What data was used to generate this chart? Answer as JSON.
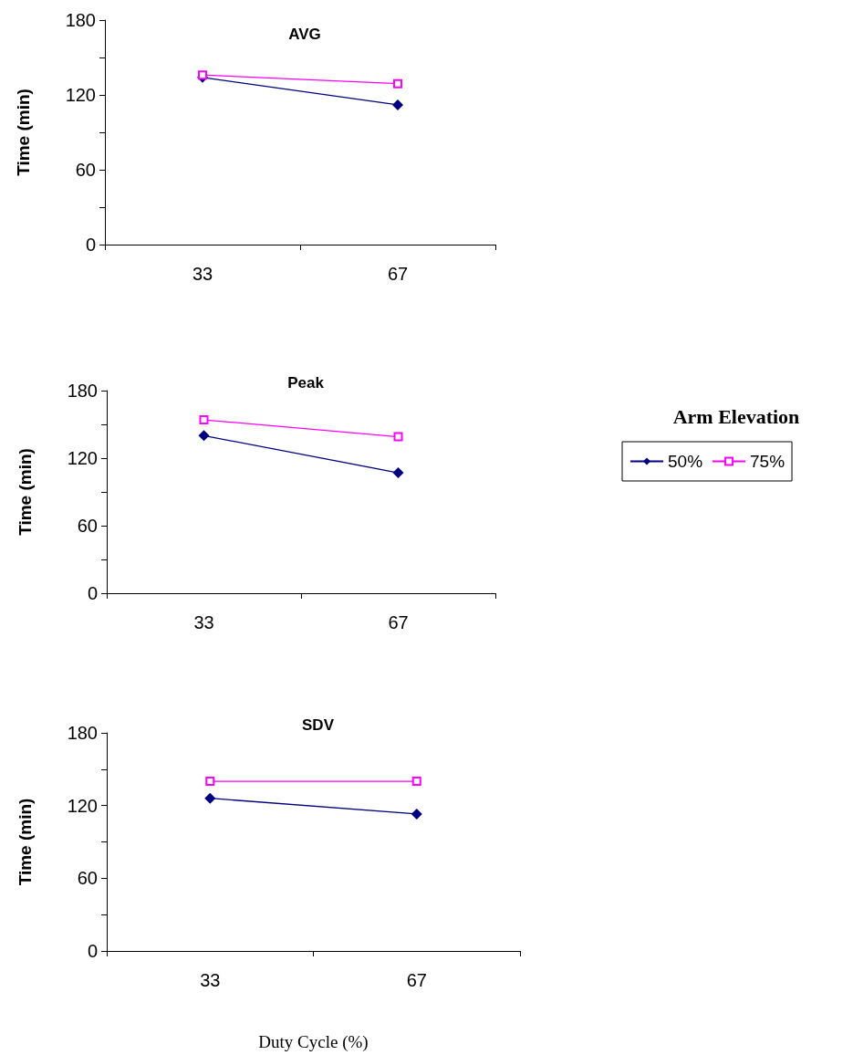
{
  "chart_data": [
    {
      "type": "line",
      "title": "AVG",
      "ylabel": "Time (min)",
      "categories": [
        "33",
        "67"
      ],
      "ylim": [
        0,
        180
      ],
      "yticks": [
        0,
        {
          "value": 30,
          "label": null
        },
        60,
        {
          "value": 90,
          "label": null
        },
        120,
        {
          "value": 150,
          "label": null
        },
        180
      ],
      "grid": false,
      "legend": false,
      "series": [
        {
          "color": "#000080",
          "marker": "diamond",
          "values": [
            134,
            112
          ]
        },
        {
          "color": "#ff00ff",
          "marker": "square",
          "values": [
            136,
            129
          ]
        }
      ]
    },
    {
      "type": "line",
      "title": "Peak",
      "ylabel": "Time (min)",
      "categories": [
        "33",
        "67"
      ],
      "ylim": [
        0,
        180
      ],
      "yticks": [
        0,
        {
          "value": 30,
          "label": null
        },
        60,
        {
          "value": 90,
          "label": null
        },
        120,
        {
          "value": 150,
          "label": null
        },
        180
      ],
      "grid": false,
      "legend": "right",
      "legend_title": "Arm Elevation",
      "series": [
        {
          "name": "50%",
          "color": "#000080",
          "marker": "diamond",
          "values": [
            140,
            107
          ]
        },
        {
          "name": "75%",
          "color": "#ff00ff",
          "marker": "square",
          "values": [
            154,
            139
          ]
        }
      ]
    },
    {
      "type": "line",
      "title": "SDV",
      "ylabel": "Time (min)",
      "xlabel": "Duty Cycle (%)",
      "categories": [
        "33",
        "67"
      ],
      "ylim": [
        0,
        180
      ],
      "yticks": [
        0,
        {
          "value": 30,
          "label": null
        },
        60,
        {
          "value": 90,
          "label": null
        },
        120,
        {
          "value": 150,
          "label": null
        },
        180
      ],
      "grid": false,
      "legend": false,
      "series": [
        {
          "color": "#000080",
          "marker": "diamond",
          "values": [
            126,
            113
          ]
        },
        {
          "color": "#ff00ff",
          "marker": "square",
          "values": [
            140,
            140
          ]
        }
      ]
    }
  ]
}
